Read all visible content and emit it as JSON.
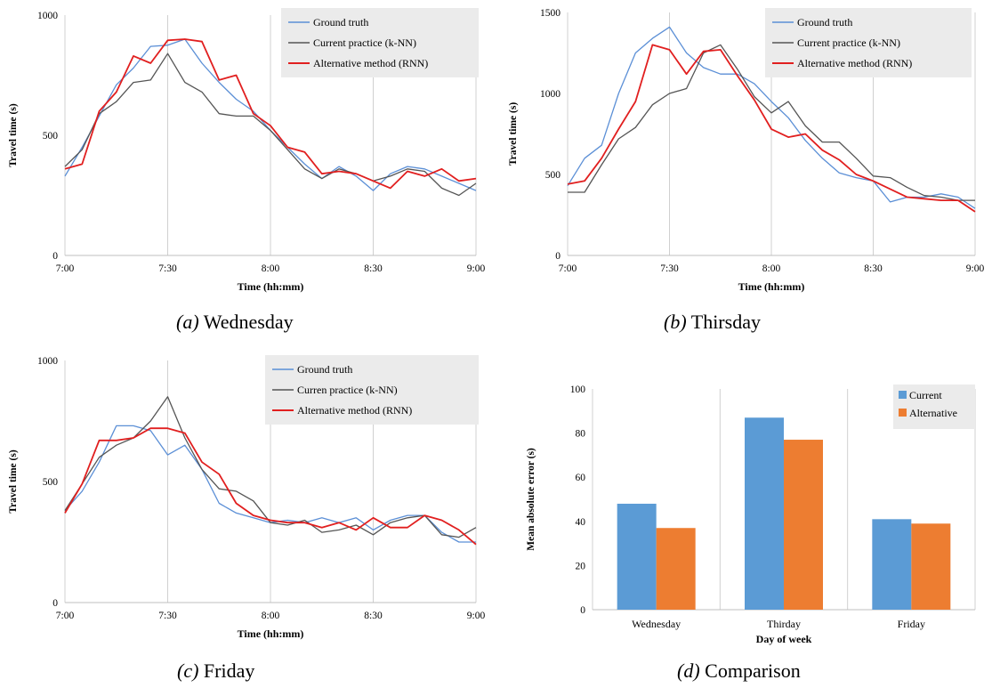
{
  "chart_data": [
    {
      "type": "line",
      "panel": "a",
      "xlabel": "Time (hh:mm)",
      "ylabel": "Travel time (s)",
      "xticks": [
        "7:00",
        "7:30",
        "8:00",
        "8:30",
        "9:00"
      ],
      "xlim": [
        0,
        120
      ],
      "ylim": [
        0,
        1000
      ],
      "yticks": [
        0,
        500,
        1000
      ],
      "grid": "vertical",
      "legend": "top-right",
      "x": [
        0,
        5,
        10,
        15,
        20,
        25,
        30,
        35,
        40,
        45,
        50,
        55,
        60,
        65,
        70,
        75,
        80,
        85,
        90,
        95,
        100,
        105,
        110,
        115,
        120
      ],
      "series": [
        {
          "name": "Ground truth",
          "color": "#5b8fd6",
          "values": [
            330,
            450,
            580,
            710,
            780,
            870,
            875,
            900,
            800,
            720,
            650,
            600,
            520,
            450,
            380,
            320,
            370,
            330,
            270,
            340,
            370,
            360,
            330,
            300,
            270
          ]
        },
        {
          "name": "Current practice (k-NN)",
          "color": "#555555",
          "values": [
            370,
            440,
            590,
            640,
            720,
            730,
            840,
            720,
            680,
            590,
            580,
            580,
            520,
            440,
            360,
            320,
            360,
            340,
            310,
            330,
            360,
            350,
            280,
            250,
            300
          ]
        },
        {
          "name": "Alternative method (RNN)",
          "color": "#e11f1f",
          "values": [
            360,
            380,
            600,
            680,
            830,
            800,
            895,
            900,
            890,
            730,
            750,
            590,
            540,
            450,
            430,
            340,
            350,
            340,
            310,
            280,
            350,
            330,
            360,
            310,
            320
          ]
        }
      ]
    },
    {
      "type": "line",
      "panel": "b",
      "xlabel": "Time (hh:mm)",
      "ylabel": "Travel time (s)",
      "xticks": [
        "7:00",
        "7:30",
        "8:00",
        "8:30",
        "9:00"
      ],
      "xlim": [
        0,
        120
      ],
      "ylim": [
        0,
        1500
      ],
      "yticks": [
        0,
        500,
        1000,
        1500
      ],
      "grid": "vertical",
      "legend": "top-right",
      "x": [
        0,
        5,
        10,
        15,
        20,
        25,
        30,
        35,
        40,
        45,
        50,
        55,
        60,
        65,
        70,
        75,
        80,
        85,
        90,
        95,
        100,
        105,
        110,
        115,
        120
      ],
      "series": [
        {
          "name": "Ground truth",
          "color": "#5b8fd6",
          "values": [
            430,
            600,
            680,
            1000,
            1250,
            1340,
            1410,
            1250,
            1160,
            1120,
            1120,
            1060,
            950,
            850,
            710,
            600,
            510,
            480,
            460,
            330,
            360,
            360,
            380,
            360,
            290
          ]
        },
        {
          "name": "Current practice (k-NN)",
          "color": "#555555",
          "values": [
            390,
            390,
            560,
            720,
            790,
            930,
            1000,
            1030,
            1250,
            1300,
            1150,
            980,
            880,
            950,
            800,
            700,
            700,
            600,
            490,
            480,
            420,
            370,
            360,
            340,
            340
          ]
        },
        {
          "name": "Alternative method (RNN)",
          "color": "#e11f1f",
          "values": [
            440,
            460,
            600,
            780,
            950,
            1300,
            1270,
            1120,
            1260,
            1270,
            1110,
            960,
            780,
            730,
            750,
            650,
            590,
            500,
            460,
            410,
            360,
            350,
            340,
            340,
            270
          ]
        }
      ]
    },
    {
      "type": "line",
      "panel": "c",
      "xlabel": "Time (hh:mm)",
      "ylabel": "Travel time (s)",
      "xticks": [
        "7:00",
        "7:30",
        "8:00",
        "8:30",
        "9:00"
      ],
      "xlim": [
        0,
        120
      ],
      "ylim": [
        0,
        1000
      ],
      "yticks": [
        0,
        500,
        1000
      ],
      "grid": "vertical",
      "legend": "top-right",
      "x": [
        0,
        5,
        10,
        15,
        20,
        25,
        30,
        35,
        40,
        45,
        50,
        55,
        60,
        65,
        70,
        75,
        80,
        85,
        90,
        95,
        100,
        105,
        110,
        115,
        120
      ],
      "series": [
        {
          "name": "Ground truth",
          "color": "#5b8fd6",
          "values": [
            380,
            460,
            580,
            730,
            730,
            710,
            610,
            650,
            550,
            410,
            370,
            350,
            330,
            340,
            330,
            350,
            330,
            350,
            300,
            340,
            360,
            360,
            290,
            250,
            250
          ]
        },
        {
          "name": "Curren practice (k-NN)",
          "color": "#555555",
          "values": [
            380,
            490,
            600,
            650,
            680,
            750,
            850,
            680,
            550,
            470,
            460,
            420,
            330,
            320,
            340,
            290,
            300,
            320,
            280,
            330,
            350,
            360,
            280,
            270,
            310
          ]
        },
        {
          "name": "Alternative method (RNN)",
          "color": "#e11f1f",
          "values": [
            370,
            490,
            670,
            670,
            680,
            720,
            720,
            700,
            580,
            530,
            410,
            360,
            340,
            330,
            330,
            310,
            330,
            300,
            350,
            310,
            310,
            360,
            340,
            300,
            240
          ]
        }
      ]
    },
    {
      "type": "bar",
      "panel": "d",
      "xlabel": "Day of week",
      "ylabel": "Mean absolute error (s)",
      "categories": [
        "Wednesday",
        "Thirday",
        "Friday"
      ],
      "ylim": [
        0,
        100
      ],
      "yticks": [
        0,
        20,
        40,
        60,
        80,
        100
      ],
      "grid": "vertical-separators",
      "legend": "top-right",
      "series": [
        {
          "name": "Current",
          "color": "#5b9bd5",
          "values": [
            48,
            87,
            41
          ]
        },
        {
          "name": "Alternative",
          "color": "#ed7d31",
          "values": [
            37,
            77,
            39
          ]
        }
      ]
    }
  ],
  "captions": [
    {
      "label": "(a)",
      "text": " Wednesday"
    },
    {
      "label": "(b)",
      "text": " Thirsday"
    },
    {
      "label": "(c)",
      "text": " Friday"
    },
    {
      "label": "(d)",
      "text": " Comparison"
    }
  ]
}
